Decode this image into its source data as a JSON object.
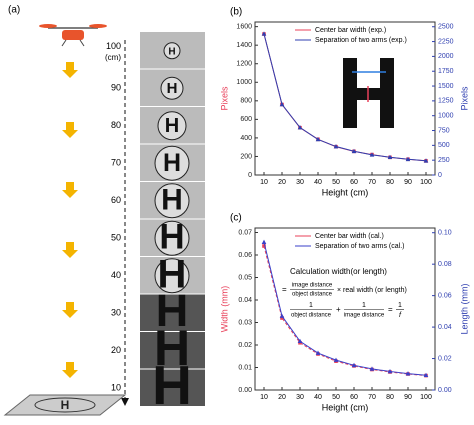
{
  "panel_a": {
    "label": "(a)",
    "heights": [
      100,
      90,
      80,
      70,
      60,
      50,
      40,
      30,
      20,
      10
    ],
    "unit": "(cm)"
  },
  "chart_data": [
    {
      "type": "line",
      "panel": "(b)",
      "xlabel": "Height (cm)",
      "ylabel": "Pixels",
      "y2label": "Pixels",
      "x": [
        10,
        20,
        30,
        40,
        50,
        60,
        70,
        80,
        90,
        100
      ],
      "xlim": [
        5,
        105
      ],
      "xticks": [
        10,
        20,
        30,
        40,
        50,
        60,
        70,
        80,
        90,
        100
      ],
      "ylim": [
        0,
        1650
      ],
      "yticks": [
        0,
        200,
        400,
        600,
        800,
        1000,
        1200,
        1400,
        1600
      ],
      "y2lim": [
        0,
        2580
      ],
      "y2ticks": [
        0,
        250,
        500,
        750,
        1000,
        1250,
        1500,
        1750,
        2000,
        2250,
        2500
      ],
      "legend": "upper right",
      "series": [
        {
          "name": "Center bar width (exp.)",
          "color": "#e8405a",
          "values": [
            1520,
            760,
            510,
            385,
            305,
            255,
            220,
            190,
            170,
            152
          ]
        },
        {
          "name": "Separation of two arms (exp.)",
          "color": "#2f3fb0",
          "axis": "y2",
          "values": [
            2380,
            1190,
            800,
            600,
            480,
            400,
            340,
            300,
            265,
            240
          ]
        }
      ]
    },
    {
      "type": "line",
      "panel": "(c)",
      "xlabel": "Height (cm)",
      "ylabel": "Width (mm)",
      "y2label": "Length (mm)",
      "x": [
        10,
        20,
        30,
        40,
        50,
        60,
        70,
        80,
        90,
        100
      ],
      "xlim": [
        5,
        105
      ],
      "xticks": [
        10,
        20,
        30,
        40,
        50,
        60,
        70,
        80,
        90,
        100
      ],
      "ylim": [
        0,
        0.072
      ],
      "yticks": [
        {
          "value": 0,
          "label": "0.00"
        },
        0.01,
        0.02,
        0.03,
        0.04,
        0.05,
        0.06,
        0.07
      ],
      "y2lim": [
        0,
        0.103
      ],
      "y2ticks": [
        {
          "value": 0,
          "label": "0.00"
        },
        0.02,
        0.04,
        0.06,
        0.08,
        {
          "value": 0.1,
          "label": "0.10"
        }
      ],
      "legend": "upper right",
      "series": [
        {
          "name": "Center bar width (cal.)",
          "color": "#e8405a",
          "values": [
            0.064,
            0.032,
            0.021,
            0.016,
            0.0128,
            0.0107,
            0.0091,
            0.008,
            0.0071,
            0.0064
          ]
        },
        {
          "name": "Separation of two arms (cal.)",
          "color": "#3a3fc8",
          "axis": "y2",
          "values": [
            0.094,
            0.047,
            0.031,
            0.0235,
            0.019,
            0.0157,
            0.0134,
            0.0118,
            0.0104,
            0.0094
          ]
        }
      ],
      "formula": {
        "title": "Calculation width(or length)",
        "eq1": {
          "sign": "=",
          "num": "image distance",
          "den": "object distance",
          "rest": "× real width (or length)"
        },
        "eq2": {
          "n1": "1",
          "d1": "object distance",
          "plus": "+",
          "n2": "1",
          "d2": "image distance",
          "sign": "=",
          "n3": "1",
          "d3": "f"
        }
      }
    }
  ]
}
